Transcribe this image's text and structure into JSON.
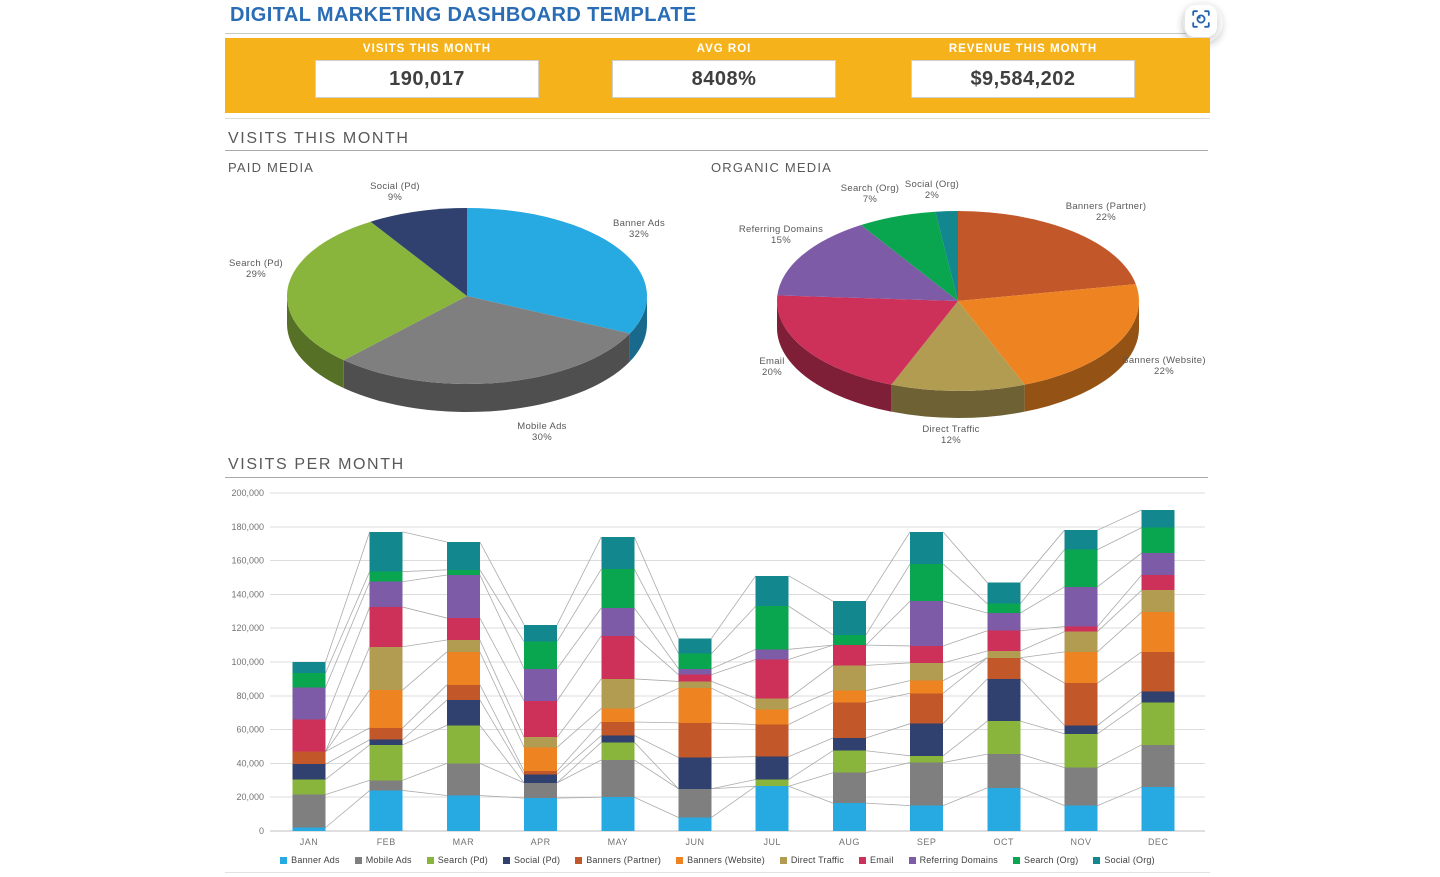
{
  "header": {
    "title": "DIGITAL MARKETING DASHBOARD TEMPLATE"
  },
  "kpi_bar": {
    "band_color": "#F6B21A",
    "items": [
      {
        "label": "VISITS THIS MONTH",
        "value": "190,017"
      },
      {
        "label": "AVG ROI",
        "value": "8408%"
      },
      {
        "label": "REVENUE THIS MONTH",
        "value": "$9,584,202"
      }
    ]
  },
  "sections": {
    "visits_this_month": "VISITS THIS MONTH",
    "visits_per_month": "VISITS PER MONTH"
  },
  "chart_data": [
    {
      "type": "pie",
      "style": "3d",
      "title": "PAID MEDIA",
      "labels": [
        "Banner Ads",
        "Mobile Ads",
        "Search (Pd)",
        "Social (Pd)"
      ],
      "values": [
        32,
        30,
        29,
        9
      ],
      "unit": "%",
      "colors": [
        "#27A9E1",
        "#7F7F7F",
        "#8AB53C",
        "#30406F"
      ],
      "start": "12-oclock",
      "direction": "clockwise",
      "legend_position": "none"
    },
    {
      "type": "pie",
      "style": "3d",
      "title": "ORGANIC MEDIA",
      "labels": [
        "Banners (Partner)",
        "Banners (Website)",
        "Direct Traffic",
        "Email",
        "Referring Domains",
        "Search (Org)",
        "Social (Org)"
      ],
      "values": [
        22,
        22,
        12,
        20,
        15,
        7,
        2
      ],
      "unit": "%",
      "colors": [
        "#C2572A",
        "#EE8421",
        "#B29C52",
        "#CD3059",
        "#7D5BA6",
        "#0AA64F",
        "#12888E"
      ],
      "start": "12-oclock",
      "direction": "clockwise",
      "legend_position": "none"
    },
    {
      "type": "bar",
      "subtype": "stacked-column-with-series-lines",
      "title": "VISITS PER MONTH",
      "categories": [
        "JAN",
        "FEB",
        "MAR",
        "APR",
        "MAY",
        "JUN",
        "JUL",
        "AUG",
        "SEP",
        "OCT",
        "NOV",
        "DEC"
      ],
      "ylim": [
        0,
        200000
      ],
      "ytick_interval": 20000,
      "grid": true,
      "legend_position": "bottom",
      "series": [
        {
          "name": "Banner Ads",
          "color": "#27A9E1",
          "values": [
            2000,
            24000,
            21000,
            19500,
            20000,
            8000,
            26500,
            16500,
            15000,
            25500,
            15000,
            26000
          ]
        },
        {
          "name": "Mobile Ads",
          "color": "#7F7F7F",
          "values": [
            19500,
            6000,
            19000,
            9000,
            22000,
            17000,
            0,
            18000,
            25500,
            20000,
            22500,
            25000
          ]
        },
        {
          "name": "Search (Pd)",
          "color": "#8AB53C",
          "values": [
            9000,
            21000,
            22500,
            0,
            10500,
            0,
            4000,
            13000,
            4000,
            19500,
            20000,
            25000
          ]
        },
        {
          "name": "Social (Pd)",
          "color": "#30406F",
          "values": [
            9000,
            3000,
            15000,
            5000,
            4000,
            18500,
            13500,
            7500,
            19000,
            25000,
            5000,
            6500
          ]
        },
        {
          "name": "Banners (Partner)",
          "color": "#C2572A",
          "values": [
            7500,
            7000,
            9000,
            2000,
            8000,
            20500,
            19000,
            21000,
            18000,
            12500,
            25000,
            23500
          ]
        },
        {
          "name": "Banners (Website)",
          "color": "#EE8421",
          "values": [
            0,
            22500,
            19500,
            14000,
            8000,
            20500,
            9000,
            7000,
            7500,
            0,
            18500,
            23500
          ]
        },
        {
          "name": "Direct Traffic",
          "color": "#B29C52",
          "values": [
            0,
            25500,
            7000,
            6000,
            17500,
            4000,
            6500,
            15000,
            10500,
            4000,
            12000,
            13000
          ]
        },
        {
          "name": "Email",
          "color": "#CD3059",
          "values": [
            19000,
            23500,
            13000,
            21500,
            25500,
            4000,
            23000,
            12000,
            10000,
            12000,
            3000,
            9000
          ]
        },
        {
          "name": "Referring Domains",
          "color": "#7D5BA6",
          "values": [
            19000,
            15000,
            25500,
            19000,
            16500,
            3500,
            6000,
            0,
            26500,
            10500,
            23500,
            13000
          ]
        },
        {
          "name": "Search (Org)",
          "color": "#0AA64F",
          "values": [
            8500,
            6000,
            3000,
            16000,
            23000,
            9000,
            25500,
            6000,
            22000,
            5500,
            22000,
            15000
          ]
        },
        {
          "name": "Social (Org)",
          "color": "#12888E",
          "values": [
            6500,
            23500,
            16500,
            10000,
            19000,
            9000,
            18000,
            20000,
            19000,
            12500,
            11500,
            10500
          ]
        }
      ]
    }
  ]
}
